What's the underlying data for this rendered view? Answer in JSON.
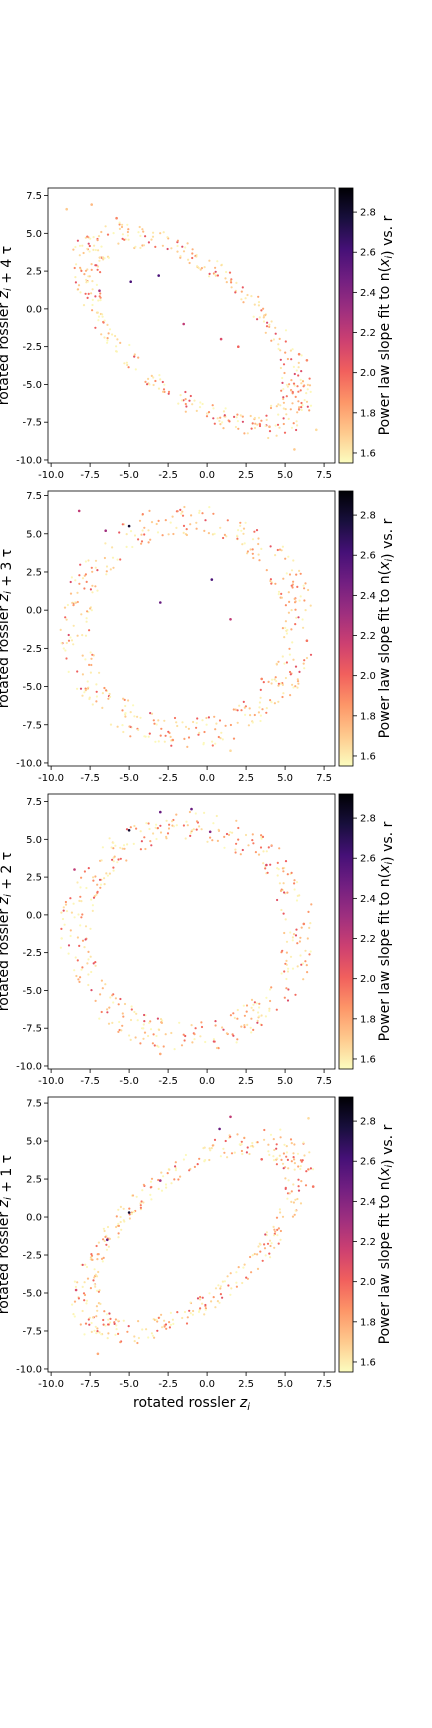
{
  "colormap": {
    "name": "magma_r",
    "stops": [
      "#fcfdbf",
      "#fec98d",
      "#fd9668",
      "#f1605d",
      "#cd4071",
      "#9e2f7f",
      "#721f81",
      "#451077",
      "#180f3d",
      "#000004"
    ]
  },
  "chart_data": [
    {
      "type": "scatter",
      "title": "",
      "xlabel": "",
      "ylabel": "rotated rossler z_i + 4 τ",
      "xlim": [
        -10.2,
        8.2
      ],
      "ylim": [
        -10.2,
        8.0
      ],
      "xticks": [
        "-10.0",
        "-7.5",
        "-5.0",
        "-2.5",
        "0.0",
        "2.5",
        "5.0",
        "7.5"
      ],
      "yticks": [
        "-10.0",
        "-7.5",
        "-5.0",
        "-2.5",
        "0.0",
        "2.5",
        "5.0",
        "7.5"
      ],
      "colorbar_label": "Power law slope fit to n(x_i) vs. r",
      "colorbar_range": [
        1.55,
        2.92
      ],
      "colorbar_ticks": [
        "1.6",
        "1.8",
        "2.0",
        "2.2",
        "2.4",
        "2.6",
        "2.8"
      ],
      "shape": "diag",
      "seed": 11,
      "points": [
        {
          "x": -9.0,
          "y": 6.6,
          "c": 1.7
        },
        {
          "x": -7.4,
          "y": 6.9,
          "c": 1.75
        },
        {
          "x": -5.8,
          "y": 6.0,
          "c": 1.9
        },
        {
          "x": -4.9,
          "y": 1.8,
          "c": 2.6
        },
        {
          "x": -3.1,
          "y": 2.2,
          "c": 2.6
        },
        {
          "x": -6.9,
          "y": 1.2,
          "c": 2.3
        },
        {
          "x": -1.5,
          "y": -1.0,
          "c": 2.2
        },
        {
          "x": 0.9,
          "y": -2.0,
          "c": 2.1
        },
        {
          "x": 2.0,
          "y": -2.5,
          "c": 2.0
        },
        {
          "x": 5.9,
          "y": -3.0,
          "c": 1.9
        },
        {
          "x": 6.4,
          "y": -3.4,
          "c": 1.9
        },
        {
          "x": 4.0,
          "y": -7.8,
          "c": 1.75
        },
        {
          "x": 5.6,
          "y": -9.3,
          "c": 1.7
        },
        {
          "x": 7.0,
          "y": -8.0,
          "c": 1.65
        }
      ]
    },
    {
      "type": "scatter",
      "title": "",
      "xlabel": "",
      "ylabel": "rotated rossler z_i + 3 τ",
      "xlim": [
        -10.2,
        8.2
      ],
      "ylim": [
        -10.2,
        7.8
      ],
      "xticks": [
        "-10.0",
        "-7.5",
        "-5.0",
        "-2.5",
        "0.0",
        "2.5",
        "5.0",
        "7.5"
      ],
      "yticks": [
        "-10.0",
        "-7.5",
        "-5.0",
        "-2.5",
        "0.0",
        "2.5",
        "5.0",
        "7.5"
      ],
      "colorbar_label": "Power law slope fit to n(x_i) vs. r",
      "colorbar_range": [
        1.55,
        2.92
      ],
      "colorbar_ticks": [
        "1.6",
        "1.8",
        "2.0",
        "2.2",
        "2.4",
        "2.6",
        "2.8"
      ],
      "shape": "ring",
      "seed": 23,
      "points": [
        {
          "x": -5.0,
          "y": 5.5,
          "c": 2.8
        },
        {
          "x": -8.2,
          "y": 6.5,
          "c": 2.2
        },
        {
          "x": -6.5,
          "y": 5.2,
          "c": 2.3
        },
        {
          "x": -3.0,
          "y": 0.5,
          "c": 2.5
        },
        {
          "x": 0.3,
          "y": 2.0,
          "c": 2.6
        },
        {
          "x": 1.5,
          "y": -0.6,
          "c": 2.2
        },
        {
          "x": 6.4,
          "y": -2.0,
          "c": 1.95
        },
        {
          "x": 3.5,
          "y": -4.5,
          "c": 1.9
        },
        {
          "x": -2.2,
          "y": -8.5,
          "c": 1.85
        },
        {
          "x": 1.5,
          "y": -9.2,
          "c": 1.65
        }
      ]
    },
    {
      "type": "scatter",
      "title": "",
      "xlabel": "",
      "ylabel": "rotated rossler z_i + 2 τ",
      "xlim": [
        -10.2,
        8.2
      ],
      "ylim": [
        -10.2,
        8.0
      ],
      "xticks": [
        "-10.0",
        "-7.5",
        "-5.0",
        "-2.5",
        "0.0",
        "2.5",
        "5.0",
        "7.5"
      ],
      "yticks": [
        "-10.0",
        "-7.5",
        "-5.0",
        "-2.5",
        "0.0",
        "2.5",
        "5.0",
        "7.5"
      ],
      "colorbar_label": "Power law slope fit to n(x_i) vs. r",
      "colorbar_range": [
        1.55,
        2.92
      ],
      "colorbar_ticks": [
        "1.6",
        "1.8",
        "2.0",
        "2.2",
        "2.4",
        "2.6",
        "2.8"
      ],
      "shape": "ring",
      "seed": 37,
      "points": [
        {
          "x": -5.0,
          "y": 5.6,
          "c": 2.8
        },
        {
          "x": -3.0,
          "y": 6.8,
          "c": 2.5
        },
        {
          "x": -1.0,
          "y": 7.0,
          "c": 2.5
        },
        {
          "x": 0.2,
          "y": 5.5,
          "c": 2.4
        },
        {
          "x": -8.5,
          "y": 3.0,
          "c": 2.2
        },
        {
          "x": 3.8,
          "y": 3.3,
          "c": 2.1
        },
        {
          "x": 6.2,
          "y": -0.6,
          "c": 1.9
        },
        {
          "x": -3.0,
          "y": -9.2,
          "c": 1.8
        }
      ]
    },
    {
      "type": "scatter",
      "title": "",
      "xlabel": "rotated rossler z_i",
      "ylabel": "rotated rossler z_i + 1 τ",
      "xlim": [
        -10.2,
        8.2
      ],
      "ylim": [
        -10.2,
        7.9
      ],
      "xticks": [
        "-10.0",
        "-7.5",
        "-5.0",
        "-2.5",
        "0.0",
        "2.5",
        "5.0",
        "7.5"
      ],
      "yticks": [
        "-10.0",
        "-7.5",
        "-5.0",
        "-2.5",
        "0.0",
        "2.5",
        "5.0",
        "7.5"
      ],
      "colorbar_label": "Power law slope fit to n(x_i) vs. r",
      "colorbar_range": [
        1.55,
        2.92
      ],
      "colorbar_ticks": [
        "1.6",
        "1.8",
        "2.0",
        "2.2",
        "2.4",
        "2.6",
        "2.8"
      ],
      "shape": "diagUp",
      "seed": 53,
      "points": [
        {
          "x": -5.0,
          "y": 0.3,
          "c": 2.8
        },
        {
          "x": -6.4,
          "y": -1.5,
          "c": 2.5
        },
        {
          "x": 0.8,
          "y": 5.8,
          "c": 2.5
        },
        {
          "x": 1.5,
          "y": 6.6,
          "c": 2.2
        },
        {
          "x": -3.0,
          "y": 2.4,
          "c": 2.3
        },
        {
          "x": -8.4,
          "y": -4.8,
          "c": 2.1
        },
        {
          "x": 3.5,
          "y": 3.8,
          "c": 2.0
        },
        {
          "x": 6.8,
          "y": 2.0,
          "c": 1.95
        },
        {
          "x": -7.0,
          "y": -9.0,
          "c": 1.8
        },
        {
          "x": 6.5,
          "y": 6.5,
          "c": 1.65
        }
      ]
    }
  ]
}
